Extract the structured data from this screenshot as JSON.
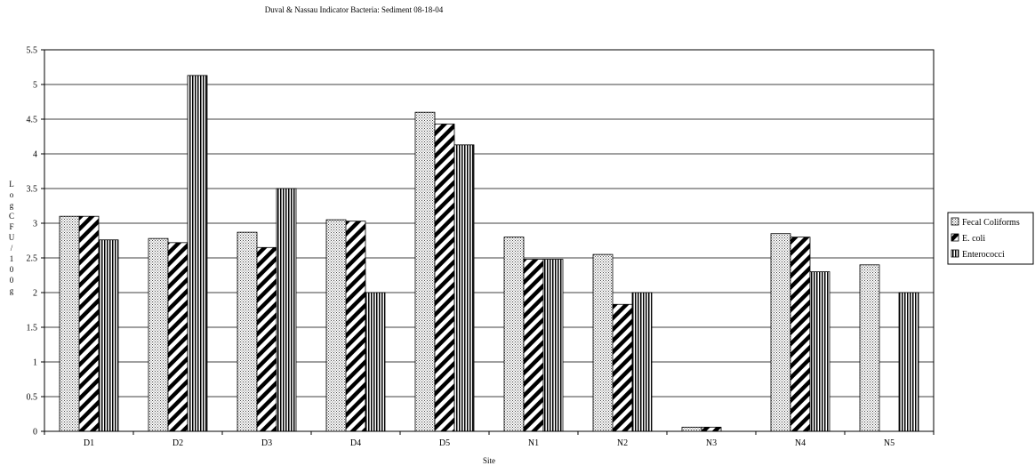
{
  "chart_data": {
    "type": "bar",
    "title": "Duval & Nassau Indicator Bacteria: Sediment 08-18-04",
    "xlabel": "Site",
    "ylabel": "Log CFU/100g",
    "ylim": [
      0,
      5.5
    ],
    "yticks": [
      "0",
      "0.5",
      "1",
      "1.5",
      "2",
      "2.5",
      "3",
      "3.5",
      "4",
      "4.5",
      "5",
      "5.5"
    ],
    "grid": "horizontal major gridlines",
    "legend_position": "right",
    "categories": [
      "D1",
      "D2",
      "D3",
      "D4",
      "D5",
      "N1",
      "N2",
      "N3",
      "N4",
      "N5"
    ],
    "series": [
      {
        "name": "Fecal Coliforms",
        "pattern": "dotted",
        "values": [
          3.1,
          2.78,
          2.87,
          3.05,
          4.6,
          2.8,
          2.55,
          0.06,
          2.85,
          2.4
        ]
      },
      {
        "name": "E. coli",
        "pattern": "diagonal-stripes",
        "values": [
          3.1,
          2.72,
          2.65,
          3.03,
          4.43,
          2.48,
          1.83,
          0.06,
          2.8,
          null
        ]
      },
      {
        "name": "Enterococci",
        "pattern": "vertical-stripes",
        "values": [
          2.76,
          5.13,
          3.5,
          2.0,
          4.13,
          2.48,
          2.0,
          null,
          2.3,
          2.0
        ]
      }
    ]
  }
}
